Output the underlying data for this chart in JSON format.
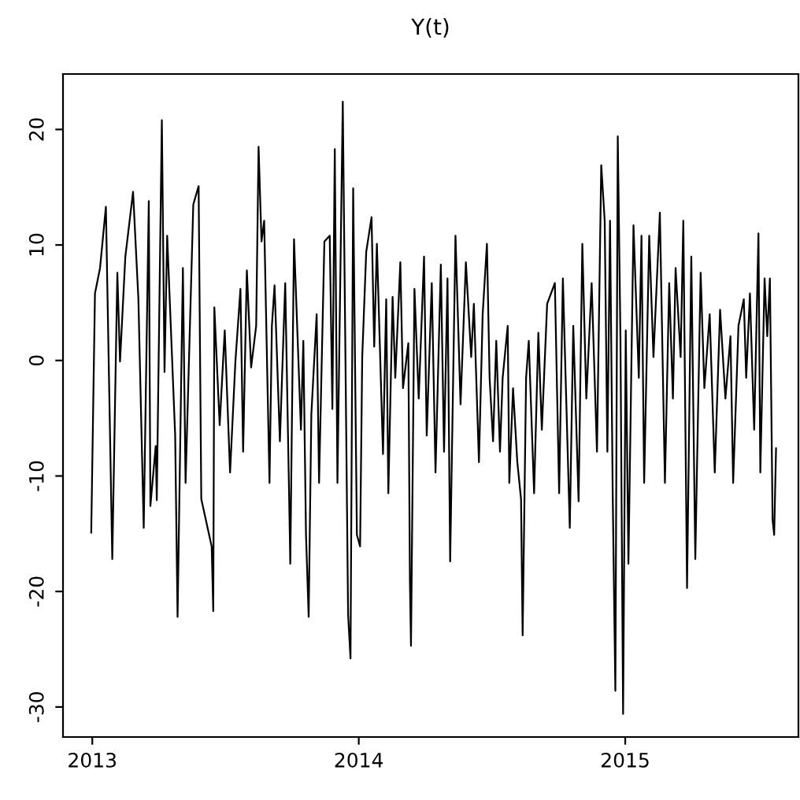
{
  "chart_data": {
    "type": "line",
    "title": "Y(t)",
    "color": "#000000",
    "grid": false,
    "xlim": [
      2012.89,
      2015.65
    ],
    "ylim": [
      -32.6,
      24.8
    ],
    "xticks": [
      2013,
      2014,
      2015
    ],
    "yticks": [
      -30,
      -20,
      -10,
      0,
      10,
      20
    ],
    "x": [
      2012.996,
      2013.01,
      2013.029,
      2013.051,
      2013.075,
      2013.094,
      2013.104,
      2013.124,
      2013.153,
      2013.173,
      2013.193,
      2013.212,
      2013.218,
      2013.238,
      2013.242,
      2013.261,
      2013.271,
      2013.281,
      2013.311,
      2013.32,
      2013.34,
      2013.35,
      2013.379,
      2013.399,
      2013.409,
      2013.448,
      2013.454,
      2013.458,
      2013.478,
      2013.497,
      2013.517,
      2013.537,
      2013.556,
      2013.566,
      2013.58,
      2013.596,
      2013.615,
      2013.624,
      2013.635,
      2013.645,
      2013.665,
      2013.674,
      2013.684,
      2013.704,
      2013.724,
      2013.739,
      2013.743,
      2013.757,
      2013.783,
      2013.792,
      2013.802,
      2013.812,
      2013.822,
      2013.842,
      2013.851,
      2013.871,
      2013.891,
      2013.901,
      2013.91,
      2013.92,
      2013.94,
      2013.95,
      2013.96,
      2013.969,
      2013.979,
      2013.993,
      2014.005,
      2014.013,
      2014.028,
      2014.048,
      2014.058,
      2014.068,
      2014.091,
      2014.103,
      2014.111,
      2014.127,
      2014.137,
      2014.156,
      2014.166,
      2014.186,
      2014.192,
      2014.196,
      2014.209,
      2014.225,
      2014.245,
      2014.255,
      2014.274,
      2014.288,
      2014.308,
      2014.32,
      2014.333,
      2014.343,
      2014.363,
      2014.382,
      2014.402,
      2014.422,
      2014.432,
      2014.451,
      2014.465,
      2014.481,
      2014.491,
      2014.504,
      2014.516,
      2014.53,
      2014.54,
      2014.559,
      2014.565,
      2014.579,
      2014.595,
      2014.609,
      2014.615,
      2014.628,
      2014.638,
      2014.658,
      2014.674,
      2014.687,
      2014.707,
      2014.736,
      2014.752,
      2014.766,
      2014.792,
      2014.805,
      2014.825,
      2014.839,
      2014.854,
      2014.874,
      2014.894,
      2014.91,
      2014.923,
      2014.933,
      2014.943,
      2014.953,
      2014.963,
      2014.972,
      2014.982,
      2014.992,
      2015.002,
      2015.012,
      2015.031,
      2015.051,
      2015.061,
      2015.071,
      2015.09,
      2015.106,
      2015.13,
      2015.149,
      2015.165,
      2015.179,
      2015.189,
      2015.208,
      2015.218,
      2015.232,
      2015.248,
      2015.263,
      2015.283,
      2015.297,
      2015.317,
      2015.336,
      2015.356,
      2015.376,
      2015.395,
      2015.405,
      2015.425,
      2015.445,
      2015.454,
      2015.468,
      2015.484,
      2015.5,
      2015.507,
      2015.523,
      2015.533,
      2015.543,
      2015.553,
      2015.559,
      2015.566
    ],
    "series": [
      {
        "values": [
          -14.9,
          5.8,
          8.0,
          13.3,
          -17.2,
          7.6,
          -0.1,
          9.0,
          14.6,
          5.3,
          -14.5,
          13.8,
          -12.6,
          -7.4,
          -12.1,
          20.8,
          -1.0,
          10.8,
          -6.5,
          -22.2,
          8.0,
          -10.6,
          13.5,
          15.1,
          -12.0,
          -16.1,
          -21.7,
          4.6,
          -5.6,
          2.6,
          -9.7,
          -0.1,
          6.2,
          -7.9,
          7.8,
          -0.6,
          3.0,
          18.5,
          10.3,
          12.1,
          -10.6,
          3.0,
          6.5,
          -7.0,
          6.7,
          -12.2,
          -17.6,
          10.5,
          -6.0,
          1.7,
          -15.1,
          -22.2,
          -4.7,
          4.0,
          -10.6,
          10.3,
          10.8,
          -4.2,
          18.3,
          -10.6,
          22.4,
          0.3,
          -22.0,
          -25.8,
          14.9,
          -15.1,
          -16.1,
          0.3,
          9.4,
          12.4,
          1.2,
          10.1,
          -8.1,
          5.3,
          -11.5,
          5.5,
          -1.5,
          8.5,
          -2.4,
          1.5,
          -19.2,
          -24.7,
          6.2,
          -3.3,
          9.0,
          -6.5,
          6.7,
          -9.7,
          8.3,
          -7.9,
          7.1,
          -17.4,
          10.8,
          -3.8,
          8.5,
          0.3,
          4.9,
          -8.8,
          4.0,
          10.1,
          -1.5,
          -7.0,
          1.7,
          -7.9,
          -1.5,
          3.0,
          -10.6,
          -2.4,
          -8.8,
          -12.0,
          -23.8,
          -1.5,
          1.7,
          -11.5,
          2.4,
          -6.0,
          4.9,
          6.7,
          -11.5,
          7.1,
          -14.5,
          3.0,
          -12.2,
          10.1,
          -3.3,
          6.7,
          -7.9,
          16.9,
          12.1,
          -7.9,
          12.1,
          -11.5,
          -28.6,
          19.4,
          2.1,
          -30.6,
          2.6,
          -17.6,
          11.7,
          -1.5,
          10.8,
          -10.6,
          10.8,
          0.3,
          12.8,
          -10.6,
          6.7,
          -3.3,
          8.0,
          0.3,
          12.1,
          -19.7,
          9.0,
          -17.2,
          7.6,
          -2.4,
          4.0,
          -9.7,
          4.4,
          -3.3,
          2.1,
          -10.6,
          3.0,
          5.3,
          -1.5,
          5.8,
          -6.0,
          11.0,
          -9.7,
          7.1,
          2.1,
          7.1,
          -13.8,
          -15.1,
          -7.6
        ]
      }
    ]
  }
}
